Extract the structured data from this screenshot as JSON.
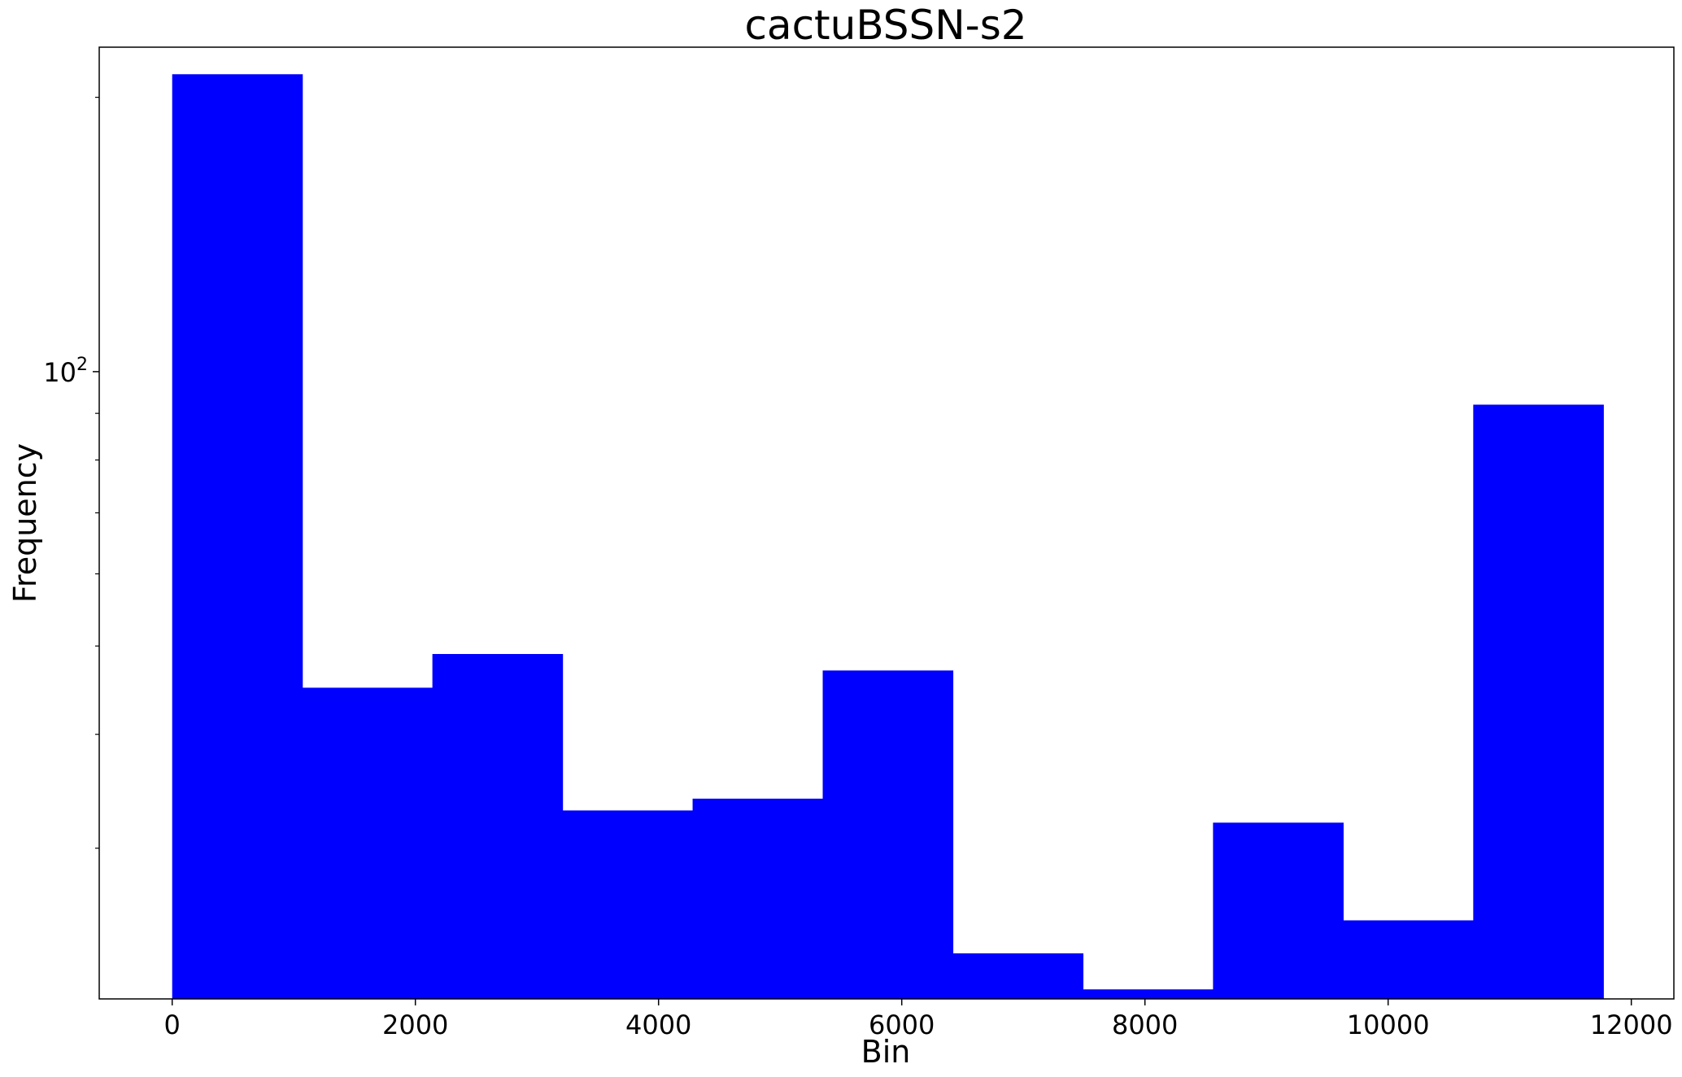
{
  "chart_data": {
    "type": "bar",
    "title": "cactuBSSN-s2",
    "xlabel": "Bin",
    "ylabel": "Frequency",
    "xlim": [
      -600,
      12350
    ],
    "ylim": [
      20.5,
      227
    ],
    "y_scale": "log",
    "grid": false,
    "bar_color": "#0000ff",
    "x_ticks": [
      0,
      2000,
      4000,
      6000,
      8000,
      10000,
      12000
    ],
    "x_tick_labels": [
      "0",
      "2000",
      "4000",
      "6000",
      "8000",
      "10000",
      "12000"
    ],
    "y_tick_label": {
      "base": "10",
      "exp": "2",
      "value": 100
    },
    "y_minor_ticks": [
      30,
      40,
      50,
      60,
      70,
      80,
      90,
      200
    ],
    "bin_edges": [
      0,
      1070,
      2140,
      3210,
      4280,
      5350,
      6420,
      7490,
      8560,
      9630,
      10700,
      11770
    ],
    "values": [
      212,
      45,
      49,
      33,
      34,
      47,
      23,
      21,
      32,
      25,
      92
    ]
  }
}
